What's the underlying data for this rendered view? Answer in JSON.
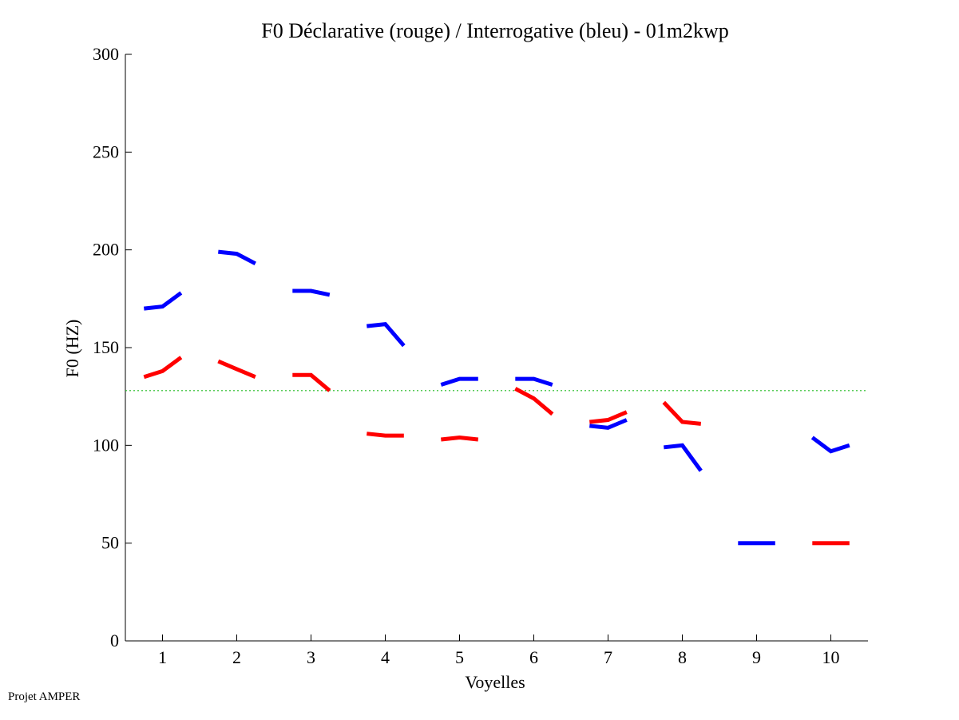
{
  "footer": "Projet AMPER",
  "chart_data": {
    "type": "line",
    "title": "F0 Déclarative (rouge) / Interrogative (bleu) - 01m2kwp",
    "xlabel": "Voyelles",
    "ylabel": "F0 (HZ)",
    "xlim": [
      0.5,
      10.5
    ],
    "ylim": [
      0,
      300
    ],
    "xticks": [
      1,
      2,
      3,
      4,
      5,
      6,
      7,
      8,
      9,
      10
    ],
    "yticks": [
      0,
      50,
      100,
      150,
      200,
      250,
      300
    ],
    "grid": false,
    "legend": "none",
    "reference_line": {
      "y": 128,
      "color": "#22bb22",
      "style": "dotted"
    },
    "series": [
      {
        "color": "#0000ff",
        "segments": [
          {
            "vowel": 1,
            "points": [
              [
                0.75,
                170
              ],
              [
                1.0,
                171
              ],
              [
                1.25,
                178
              ]
            ]
          },
          {
            "vowel": 2,
            "points": [
              [
                1.75,
                199
              ],
              [
                2.0,
                198
              ],
              [
                2.25,
                193
              ]
            ]
          },
          {
            "vowel": 3,
            "points": [
              [
                2.75,
                179
              ],
              [
                3.0,
                179
              ],
              [
                3.25,
                177
              ]
            ]
          },
          {
            "vowel": 4,
            "points": [
              [
                3.75,
                161
              ],
              [
                4.0,
                162
              ],
              [
                4.25,
                151
              ]
            ]
          },
          {
            "vowel": 5,
            "points": [
              [
                4.75,
                131
              ],
              [
                5.0,
                134
              ],
              [
                5.25,
                134
              ]
            ]
          },
          {
            "vowel": 6,
            "points": [
              [
                5.75,
                134
              ],
              [
                6.0,
                134
              ],
              [
                6.25,
                131
              ]
            ]
          },
          {
            "vowel": 7,
            "points": [
              [
                6.75,
                110
              ],
              [
                7.0,
                109
              ],
              [
                7.25,
                113
              ]
            ]
          },
          {
            "vowel": 8,
            "points": [
              [
                7.75,
                99
              ],
              [
                8.0,
                100
              ],
              [
                8.25,
                87
              ]
            ]
          },
          {
            "vowel": 9,
            "points": [
              [
                8.75,
                50
              ],
              [
                9.0,
                50
              ],
              [
                9.25,
                50
              ]
            ]
          },
          {
            "vowel": 10,
            "points": [
              [
                9.75,
                104
              ],
              [
                10.0,
                97
              ],
              [
                10.25,
                100
              ]
            ]
          }
        ]
      },
      {
        "color": "#ff0000",
        "segments": [
          {
            "vowel": 1,
            "points": [
              [
                0.75,
                135
              ],
              [
                1.0,
                138
              ],
              [
                1.25,
                145
              ]
            ]
          },
          {
            "vowel": 2,
            "points": [
              [
                1.75,
                143
              ],
              [
                2.0,
                139
              ],
              [
                2.25,
                135
              ]
            ]
          },
          {
            "vowel": 3,
            "points": [
              [
                2.75,
                136
              ],
              [
                3.0,
                136
              ],
              [
                3.25,
                128
              ]
            ]
          },
          {
            "vowel": 4,
            "points": [
              [
                3.75,
                106
              ],
              [
                4.0,
                105
              ],
              [
                4.25,
                105
              ]
            ]
          },
          {
            "vowel": 5,
            "points": [
              [
                4.75,
                103
              ],
              [
                5.0,
                104
              ],
              [
                5.25,
                103
              ]
            ]
          },
          {
            "vowel": 6,
            "points": [
              [
                5.75,
                129
              ],
              [
                6.0,
                124
              ],
              [
                6.25,
                116
              ]
            ]
          },
          {
            "vowel": 7,
            "points": [
              [
                6.75,
                112
              ],
              [
                7.0,
                113
              ],
              [
                7.25,
                117
              ]
            ]
          },
          {
            "vowel": 8,
            "points": [
              [
                7.75,
                122
              ],
              [
                8.0,
                112
              ],
              [
                8.25,
                111
              ]
            ]
          },
          {
            "vowel": 10,
            "points": [
              [
                9.75,
                50
              ],
              [
                10.0,
                50
              ],
              [
                10.25,
                50
              ]
            ]
          }
        ]
      }
    ]
  }
}
